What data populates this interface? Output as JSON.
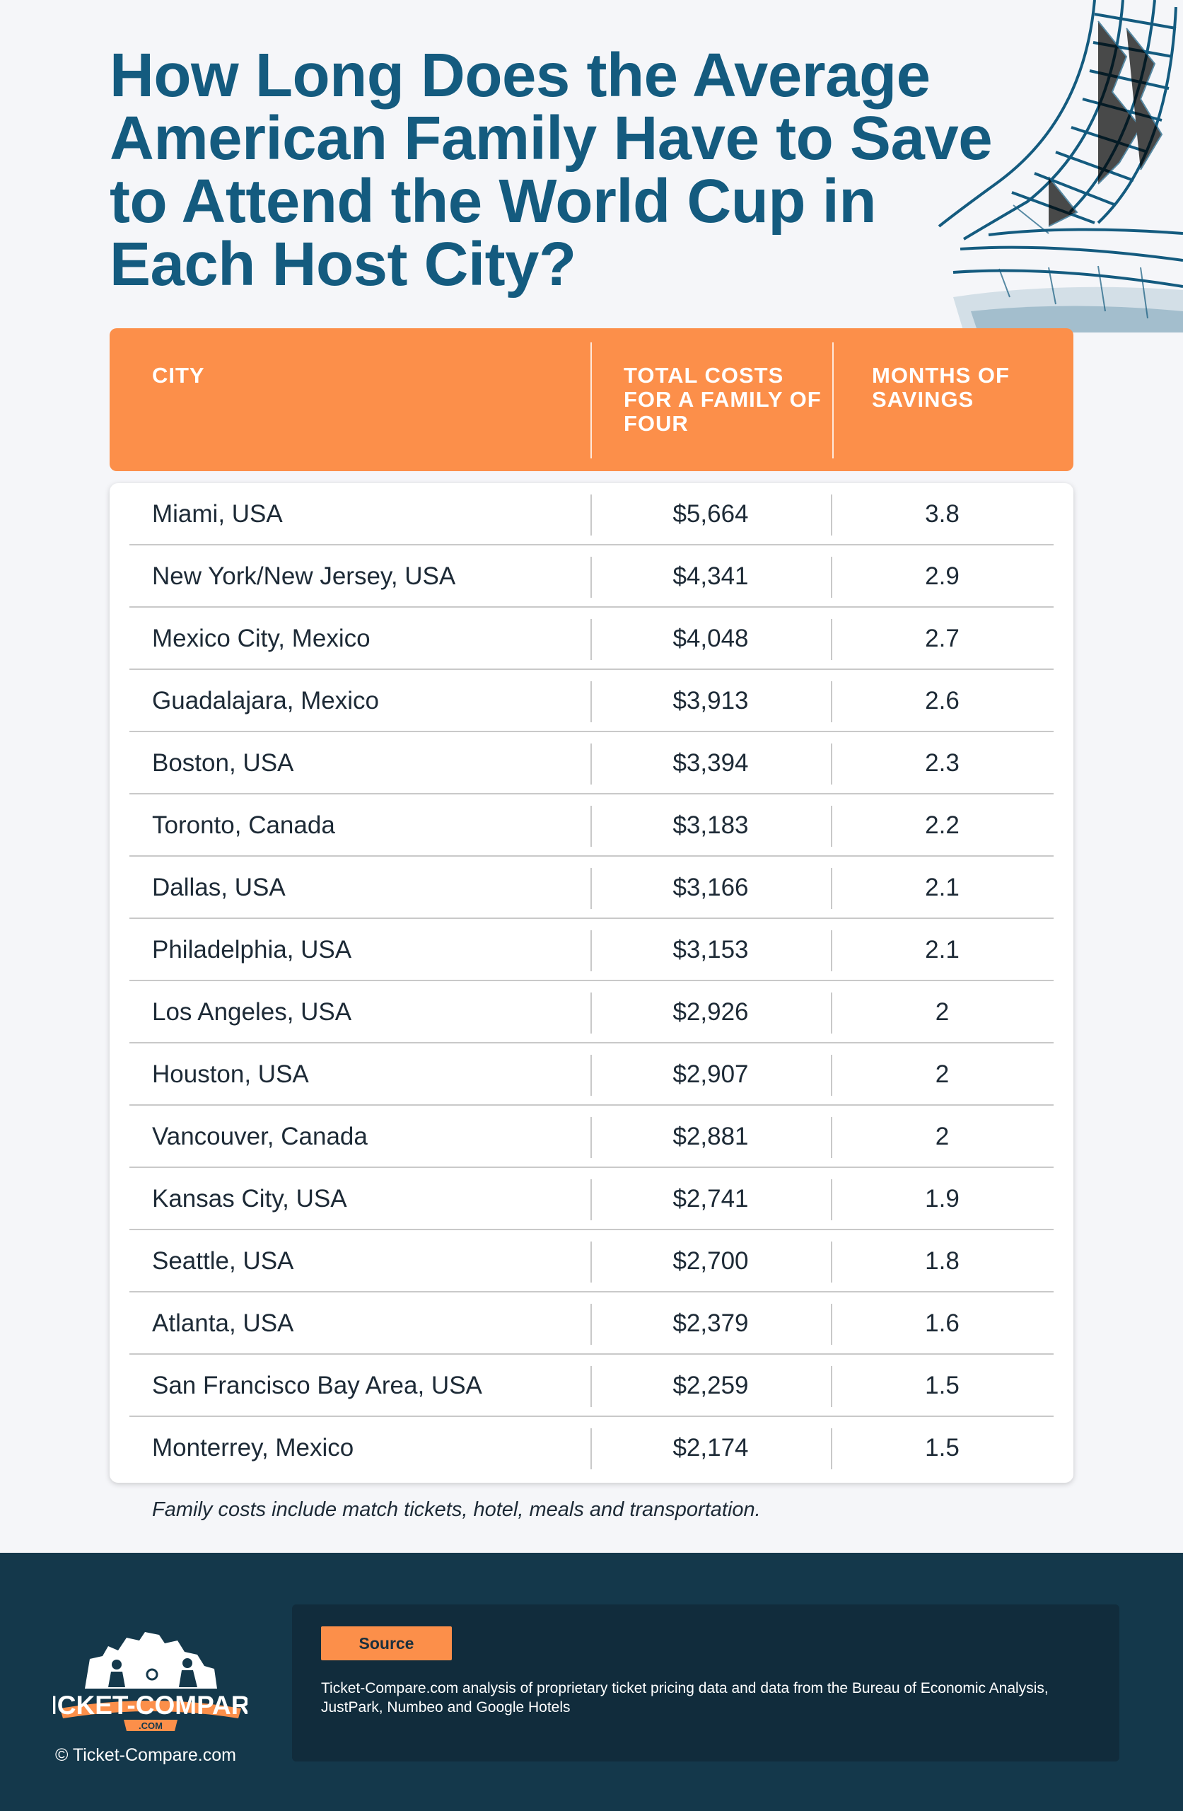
{
  "title": "How Long Does the Average American Family Have to Save to Attend the World Cup in Each Host City?",
  "table": {
    "headers": [
      "CITY",
      "TOTAL COSTS FOR A FAMILY OF FOUR",
      "MONTHS OF SAVINGS"
    ],
    "rows": [
      [
        "Miami, USA",
        "$5,664",
        "3.8"
      ],
      [
        "New York/New Jersey, USA",
        "$4,341",
        "2.9"
      ],
      [
        "Mexico City, Mexico",
        "$4,048",
        "2.7"
      ],
      [
        "Guadalajara, Mexico",
        "$3,913",
        "2.6"
      ],
      [
        "Boston, USA",
        "$3,394",
        "2.3"
      ],
      [
        "Toronto, Canada",
        "$3,183",
        "2.2"
      ],
      [
        "Dallas, USA",
        "$3,166",
        "2.1"
      ],
      [
        "Philadelphia, USA",
        "$3,153",
        "2.1"
      ],
      [
        "Los Angeles, USA",
        "$2,926",
        "2"
      ],
      [
        "Houston, USA",
        "$2,907",
        "2"
      ],
      [
        "Vancouver, Canada",
        "$2,881",
        "2"
      ],
      [
        "Kansas City, USA",
        "$2,741",
        "1.9"
      ],
      [
        "Seattle, USA",
        "$2,700",
        "1.8"
      ],
      [
        "Atlanta, USA",
        "$2,379",
        "1.6"
      ],
      [
        "San Francisco Bay Area, USA",
        "$2,259",
        "1.5"
      ],
      [
        "Monterrey, Mexico",
        "$2,174",
        "1.5"
      ]
    ]
  },
  "note": "Family costs include match tickets, hotel, meals and transportation.",
  "footer": {
    "logo_text": "TICKET-COMPARE",
    "logo_sub": ".COM",
    "copyright": "© Ticket-Compare.com",
    "source_label": "Source",
    "source_text": "Ticket-Compare.com analysis of proprietary ticket pricing data and data from the Bureau of Economic Analysis, JustPark, Numbeo and Google Hotels"
  },
  "colors": {
    "title": "#145b7f",
    "accent_orange": "#fc8f4a",
    "footer_bg": "#14384b",
    "source_bg": "#112c3c",
    "background": "#f5f6f9"
  },
  "icons": [
    "stadium-illustration",
    "ticket-compare-logo"
  ]
}
